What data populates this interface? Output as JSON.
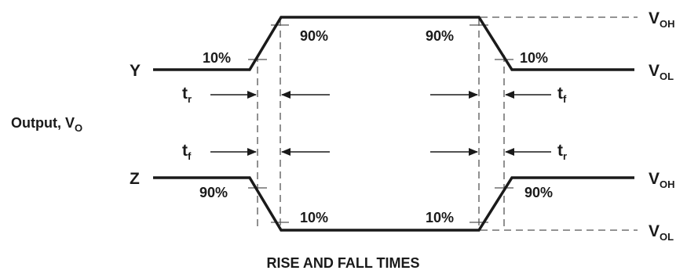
{
  "signals": {
    "y": "Y",
    "z": "Z",
    "output_main": "Output, V",
    "output_sub": "O"
  },
  "levels": {
    "v": "V",
    "oh_sub": "OH",
    "ol_sub": "OL"
  },
  "percent": {
    "p10": "10%",
    "p90": "90%"
  },
  "times": {
    "t": "t",
    "r_sub": "r",
    "f_sub": "f"
  },
  "caption": "RISE AND FALL TIMES"
}
